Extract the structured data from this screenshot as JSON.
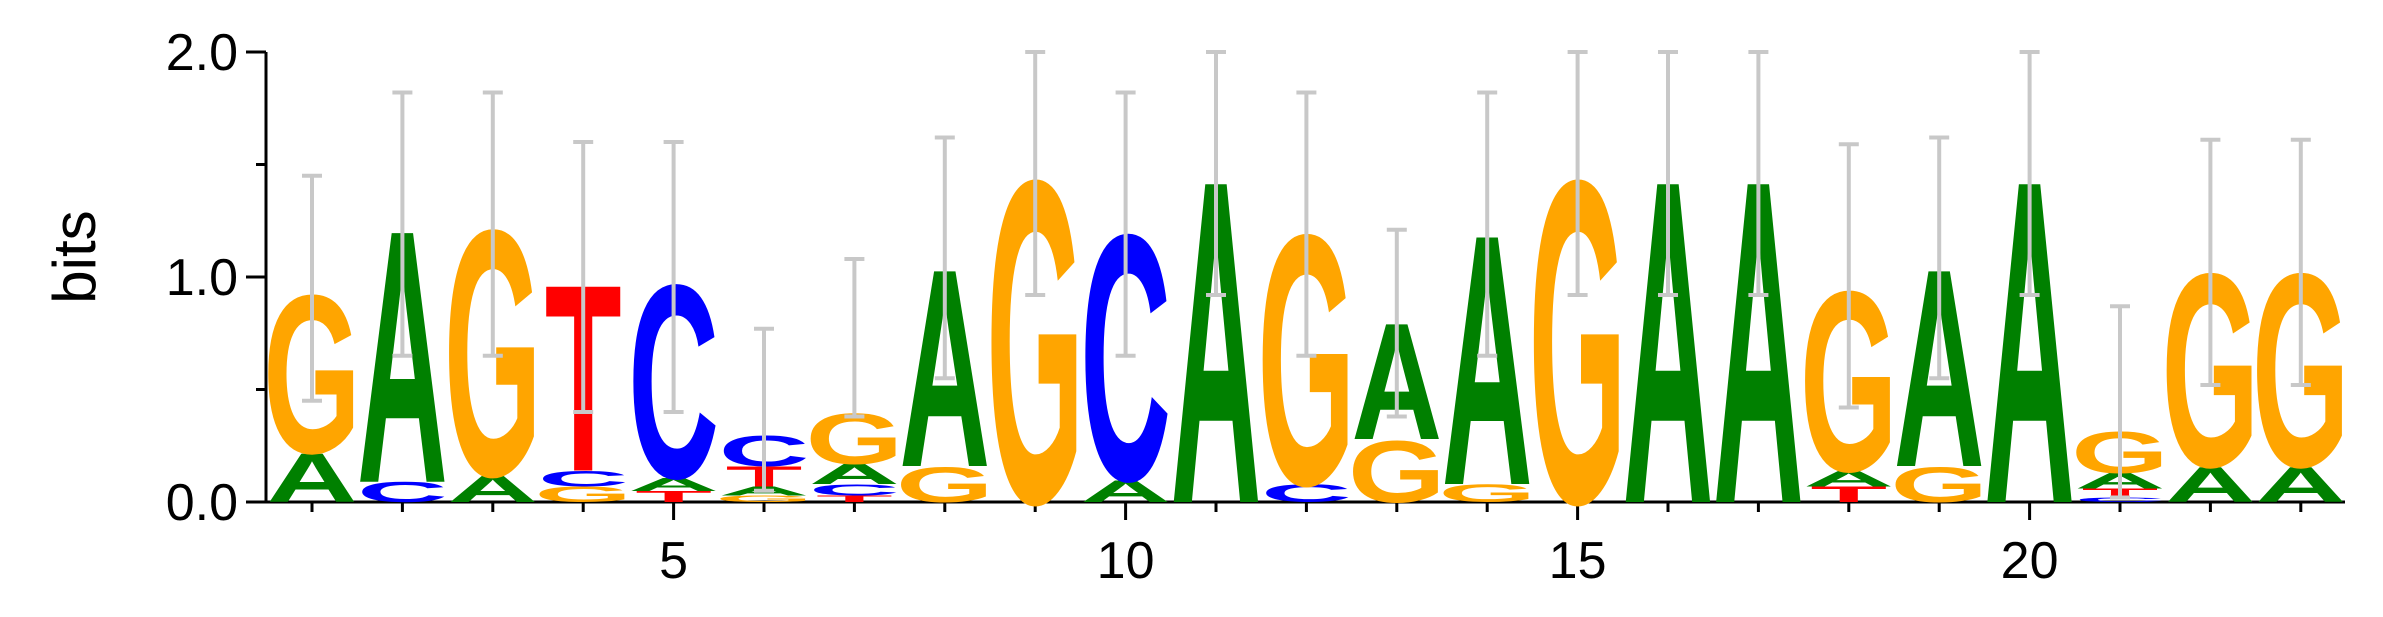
{
  "chart_data": {
    "type": "sequence-logo",
    "ylabel": "bits",
    "ylim": [
      0,
      2
    ],
    "y_ticks": [
      "0.0",
      "1.0",
      "2.0"
    ],
    "x_ticks": [
      5,
      10,
      15,
      20
    ],
    "colors": {
      "A": "#008000",
      "C": "#0000ff",
      "G": "#ffa500",
      "T": "#ff0000"
    },
    "errorbar_color": "#c8c8c8",
    "positions": [
      {
        "pos": 1,
        "letters": [
          {
            "l": "A",
            "h": 0.22
          },
          {
            "l": "G",
            "h": 0.72
          }
        ],
        "err": [
          0.45,
          1.45
        ]
      },
      {
        "pos": 2,
        "letters": [
          {
            "l": "C",
            "h": 0.09
          },
          {
            "l": "A",
            "h": 1.15
          }
        ],
        "err": [
          0.65,
          1.82
        ]
      },
      {
        "pos": 3,
        "letters": [
          {
            "l": "A",
            "h": 0.12
          },
          {
            "l": "G",
            "h": 1.12
          }
        ],
        "err": [
          0.65,
          1.82
        ]
      },
      {
        "pos": 4,
        "letters": [
          {
            "l": "G",
            "h": 0.07
          },
          {
            "l": "C",
            "h": 0.07
          },
          {
            "l": "T",
            "h": 0.85
          }
        ],
        "err": [
          0.4,
          1.6
        ]
      },
      {
        "pos": 5,
        "letters": [
          {
            "l": "T",
            "h": 0.05
          },
          {
            "l": "A",
            "h": 0.06
          },
          {
            "l": "C",
            "h": 0.88
          }
        ],
        "err": [
          0.4,
          1.6
        ]
      },
      {
        "pos": 6,
        "letters": [
          {
            "l": "G",
            "h": 0.03
          },
          {
            "l": "A",
            "h": 0.04
          },
          {
            "l": "T",
            "h": 0.09
          },
          {
            "l": "C",
            "h": 0.14
          }
        ],
        "err": [
          0.05,
          0.77
        ]
      },
      {
        "pos": 7,
        "letters": [
          {
            "l": "T",
            "h": 0.03
          },
          {
            "l": "C",
            "h": 0.05
          },
          {
            "l": "A",
            "h": 0.09
          },
          {
            "l": "G",
            "h": 0.23
          }
        ],
        "err": [
          0.38,
          1.08
        ]
      },
      {
        "pos": 8,
        "letters": [
          {
            "l": "G",
            "h": 0.16
          },
          {
            "l": "A",
            "h": 0.9
          }
        ],
        "err": [
          0.55,
          1.62
        ]
      },
      {
        "pos": 9,
        "letters": [
          {
            "l": "G",
            "h": 1.47
          }
        ],
        "err": [
          0.92,
          2.0
        ]
      },
      {
        "pos": 10,
        "letters": [
          {
            "l": "A",
            "h": 0.1
          },
          {
            "l": "C",
            "h": 1.12
          }
        ],
        "err": [
          0.65,
          1.82
        ]
      },
      {
        "pos": 11,
        "letters": [
          {
            "l": "A",
            "h": 1.47
          }
        ],
        "err": [
          0.92,
          2.0
        ]
      },
      {
        "pos": 12,
        "letters": [
          {
            "l": "C",
            "h": 0.08
          },
          {
            "l": "G",
            "h": 1.14
          }
        ],
        "err": [
          0.65,
          1.82
        ]
      },
      {
        "pos": 13,
        "letters": [
          {
            "l": "G",
            "h": 0.28
          },
          {
            "l": "A",
            "h": 0.53
          }
        ],
        "err": [
          0.38,
          1.21
        ]
      },
      {
        "pos": 14,
        "letters": [
          {
            "l": "G",
            "h": 0.08
          },
          {
            "l": "A",
            "h": 1.14
          }
        ],
        "err": [
          0.65,
          1.82
        ]
      },
      {
        "pos": 15,
        "letters": [
          {
            "l": "G",
            "h": 1.47
          }
        ],
        "err": [
          0.92,
          2.0
        ]
      },
      {
        "pos": 16,
        "letters": [
          {
            "l": "A",
            "h": 1.47
          }
        ],
        "err": [
          0.92,
          2.0
        ]
      },
      {
        "pos": 17,
        "letters": [
          {
            "l": "A",
            "h": 1.47
          }
        ],
        "err": [
          0.92,
          2.0
        ]
      },
      {
        "pos": 18,
        "letters": [
          {
            "l": "T",
            "h": 0.07
          },
          {
            "l": "A",
            "h": 0.07
          },
          {
            "l": "G",
            "h": 0.82
          }
        ],
        "err": [
          0.42,
          1.59
        ]
      },
      {
        "pos": 19,
        "letters": [
          {
            "l": "G",
            "h": 0.16
          },
          {
            "l": "A",
            "h": 0.9
          }
        ],
        "err": [
          0.55,
          1.62
        ]
      },
      {
        "pos": 20,
        "letters": [
          {
            "l": "A",
            "h": 1.47
          }
        ],
        "err": [
          0.92,
          2.0
        ]
      },
      {
        "pos": 21,
        "letters": [
          {
            "l": "C",
            "h": 0.02
          },
          {
            "l": "T",
            "h": 0.04
          },
          {
            "l": "A",
            "h": 0.07
          },
          {
            "l": "G",
            "h": 0.19
          }
        ],
        "err": [
          0.02,
          0.87
        ]
      },
      {
        "pos": 22,
        "letters": [
          {
            "l": "A",
            "h": 0.16
          },
          {
            "l": "G",
            "h": 0.88
          }
        ],
        "err": [
          0.52,
          1.61
        ]
      },
      {
        "pos": 23,
        "letters": [
          {
            "l": "A",
            "h": 0.16
          },
          {
            "l": "G",
            "h": 0.88
          }
        ],
        "err": [
          0.52,
          1.61
        ]
      }
    ]
  }
}
